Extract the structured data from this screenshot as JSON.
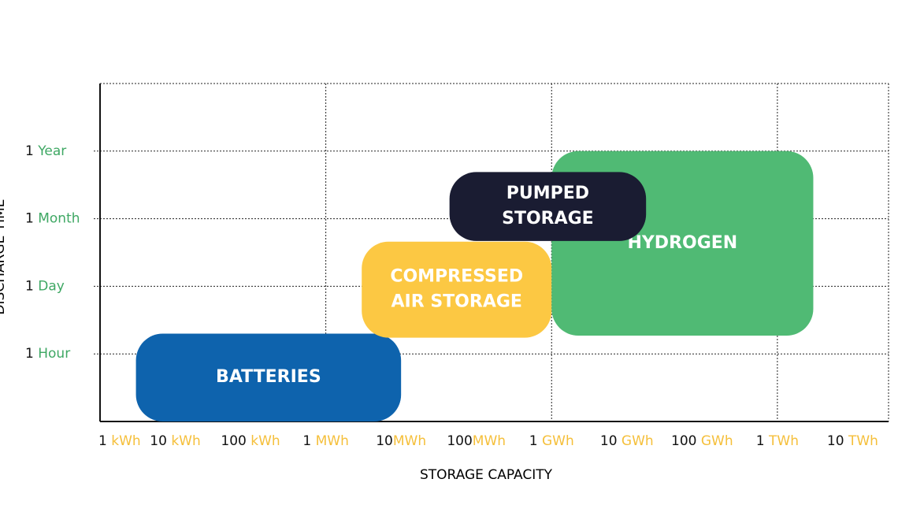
{
  "chart_data": {
    "type": "range",
    "xlabel": "STORAGE CAPACITY",
    "ylabel": "DISCHARGE TIME",
    "xscale": "log",
    "xlim": [
      1,
      30000000000
    ],
    "xticks": [
      {
        "value": 1,
        "label": "1 kWh"
      },
      {
        "value": 10,
        "label": "10 kWh"
      },
      {
        "value": 100,
        "label": "100 kWh"
      },
      {
        "value": 1000,
        "label": "1 MWh"
      },
      {
        "value": 10000,
        "label": "10MWh"
      },
      {
        "value": 100000,
        "label": "100MWh"
      },
      {
        "value": 1000000,
        "label": "1 GWh"
      },
      {
        "value": 10000000,
        "label": "10 GWh"
      },
      {
        "value": 100000000,
        "label": "100 GWh"
      },
      {
        "value": 1000000000,
        "label": "1 TWh"
      },
      {
        "value": 10000000000,
        "label": "10 TWh"
      }
    ],
    "ylim": [
      0,
      5
    ],
    "yticks": [
      {
        "value": 1,
        "label": "1 Hour"
      },
      {
        "value": 2,
        "label": "1 Day"
      },
      {
        "value": 3,
        "label": "1 Month"
      },
      {
        "value": 4,
        "label": "1 Year"
      }
    ],
    "series": [
      {
        "name_lines": [
          "BATTERIES"
        ],
        "color": "#0e63ad",
        "x": [
          3,
          10000
        ],
        "y": [
          0,
          1.3
        ]
      },
      {
        "name_lines": [
          "COMPRESSED",
          "AIR STORAGE"
        ],
        "color": "#fcc843",
        "x": [
          3000,
          1000000
        ],
        "y": [
          1.24,
          2.66
        ]
      },
      {
        "name_lines": [
          "HYDROGEN"
        ],
        "color": "#50ba74",
        "x": [
          1000000,
          3000000000
        ],
        "y": [
          1.27,
          4
        ]
      },
      {
        "name_lines": [
          "PUMPED",
          "STORAGE"
        ],
        "color": "#1a1c32",
        "x": [
          44000,
          18000000
        ],
        "y": [
          2.67,
          3.69
        ]
      }
    ]
  }
}
